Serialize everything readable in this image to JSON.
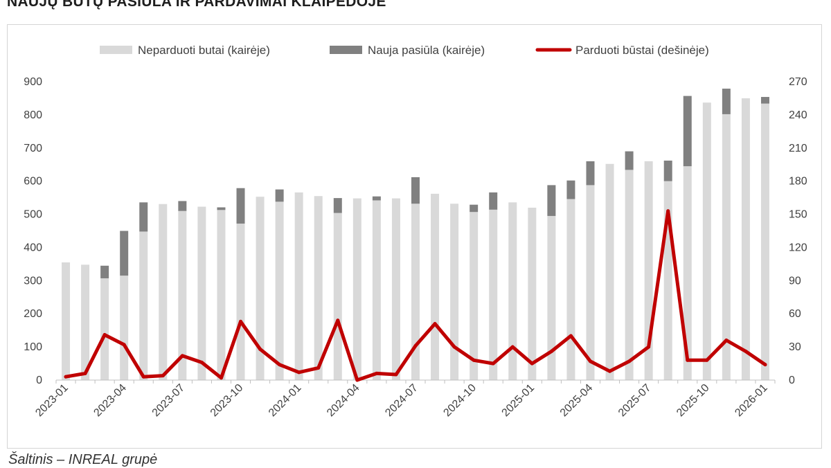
{
  "title": "NAUJŲ BUTŲ PASIŪLA IR PARDAVIMAI KLAIPĖDOJE",
  "source": "Šaltinis – INREAL grupė",
  "colors": {
    "unsold": "#d9d9d9",
    "new_offer": "#808080",
    "sold": "#c00000",
    "axis": "#bfbfbf",
    "text": "#404040"
  },
  "chart_data": {
    "type": "bar",
    "stacked": true,
    "categories": [
      "2023-01",
      "2023-02",
      "2023-03",
      "2023-04",
      "2023-05",
      "2023-06",
      "2023-07",
      "2023-08",
      "2023-09",
      "2023-10",
      "2023-11",
      "2023-12",
      "2024-01",
      "2024-02",
      "2024-03",
      "2024-04",
      "2024-05",
      "2024-06",
      "2024-07",
      "2024-08",
      "2024-09",
      "2024-10",
      "2024-11",
      "2024-12",
      "2025-01",
      "2025-02",
      "2025-03",
      "2025-04",
      "2025-05",
      "2025-06",
      "2025-07",
      "2025-08",
      "2025-09",
      "2025-10",
      "2025-11",
      "2025-12",
      "2026-01"
    ],
    "x_tick_labels": [
      "2023-01",
      "2023-04",
      "2023-07",
      "2023-10",
      "2024-01",
      "2024-04",
      "2024-07",
      "2024-10",
      "2025-01",
      "2025-04",
      "2025-07",
      "2025-10",
      "2026-01"
    ],
    "series": [
      {
        "name": "Neparduoti butai (kairėje)",
        "type": "bar",
        "axis": "left",
        "values": [
          355,
          348,
          307,
          315,
          448,
          531,
          510,
          523,
          513,
          472,
          553,
          538,
          566,
          555,
          504,
          548,
          542,
          548,
          532,
          562,
          532,
          507,
          514,
          536,
          520,
          495,
          546,
          588,
          652,
          634,
          660,
          600,
          645,
          837,
          802,
          850,
          834
        ]
      },
      {
        "name": "Nauja pasiūla (kairėje)",
        "type": "bar",
        "axis": "left",
        "values": [
          0,
          0,
          38,
          135,
          88,
          0,
          30,
          0,
          8,
          107,
          0,
          37,
          0,
          0,
          45,
          0,
          12,
          0,
          80,
          0,
          0,
          22,
          52,
          0,
          0,
          93,
          56,
          72,
          0,
          56,
          0,
          62,
          212,
          0,
          77,
          0,
          20
        ]
      },
      {
        "name": "Parduoti būstai (dešinėje)",
        "type": "line",
        "axis": "right",
        "values": [
          3,
          6,
          41,
          32,
          3,
          4,
          22,
          16,
          2,
          53,
          28,
          14,
          7,
          11,
          54,
          0,
          6,
          5,
          31,
          51,
          30,
          18,
          15,
          30,
          15,
          26,
          40,
          17,
          8,
          17,
          30,
          153,
          18,
          18,
          36,
          26,
          14
        ]
      }
    ],
    "y_left": {
      "min": 0,
      "max": 900,
      "ticks": [
        0,
        100,
        200,
        300,
        400,
        500,
        600,
        700,
        800,
        900
      ]
    },
    "y_right": {
      "min": 0,
      "max": 270,
      "ticks": [
        0,
        30,
        60,
        90,
        120,
        150,
        180,
        210,
        240,
        270
      ]
    },
    "grid": false,
    "legend_position": "top"
  }
}
